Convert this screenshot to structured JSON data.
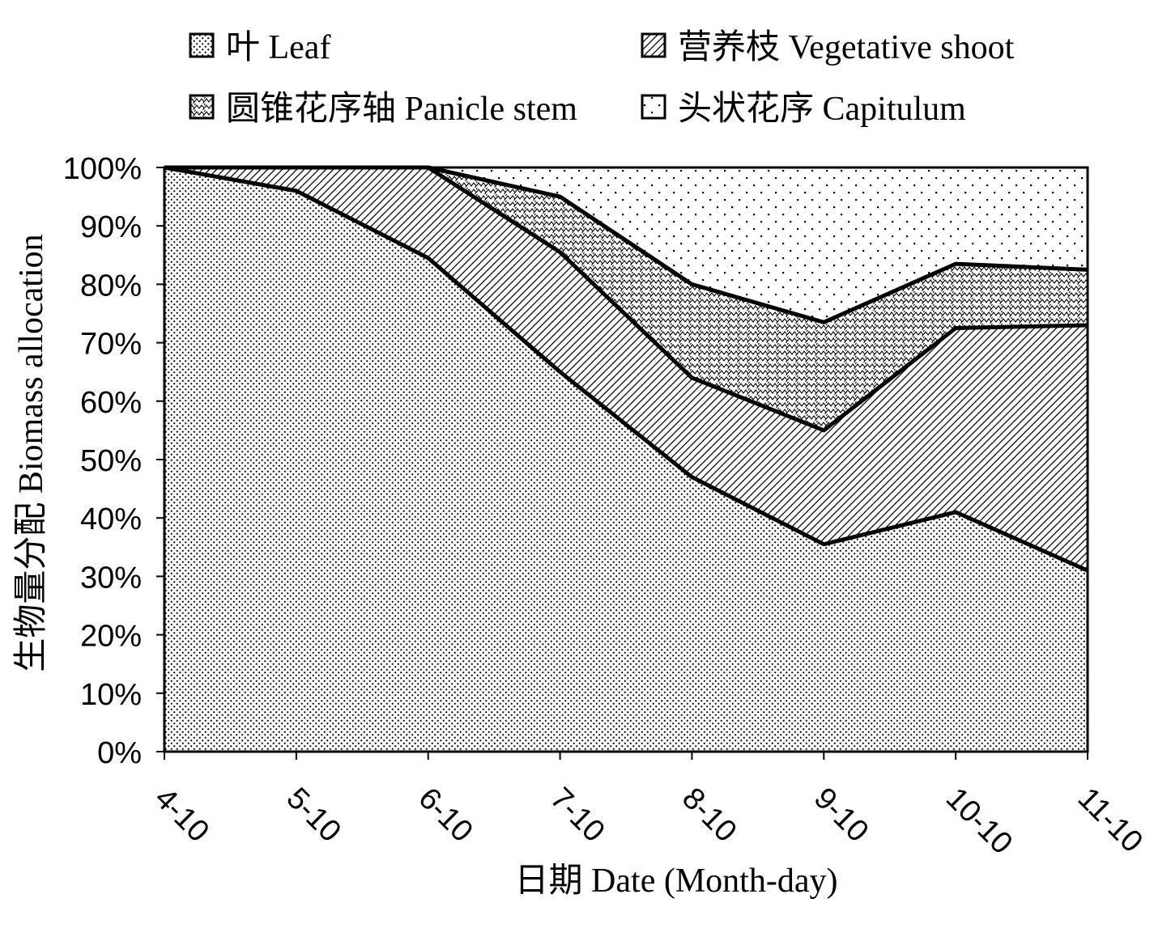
{
  "chart_data": {
    "type": "area",
    "stacked": true,
    "normalized": true,
    "x": [
      "4-10",
      "5-10",
      "6-10",
      "7-10",
      "8-10",
      "9-10",
      "10-10",
      "11-10"
    ],
    "series": [
      {
        "name": "叶 Leaf",
        "values": [
          100,
          96,
          84.5,
          65,
          47,
          35.5,
          41,
          31
        ]
      },
      {
        "name": "营养枝 Vegetative shoot",
        "values": [
          0,
          4,
          15.5,
          20.5,
          17,
          19.5,
          31.5,
          42
        ]
      },
      {
        "name": "圆锥花序轴 Panicle stem",
        "values": [
          0,
          0,
          0,
          9.5,
          16,
          18.5,
          11,
          9.5
        ]
      },
      {
        "name": "头状花序 Capitulum",
        "values": [
          0,
          0,
          0,
          5,
          20,
          26.5,
          16.5,
          17.5
        ]
      }
    ],
    "y_ticks": [
      "0%",
      "10%",
      "20%",
      "30%",
      "40%",
      "50%",
      "60%",
      "70%",
      "80%",
      "90%",
      "100%"
    ],
    "ylim": [
      0,
      100
    ],
    "xlabel": "日期 Date (Month-day)",
    "ylabel": "生物量分配 Biomass allocation",
    "legend_position": "top",
    "grid": false
  }
}
